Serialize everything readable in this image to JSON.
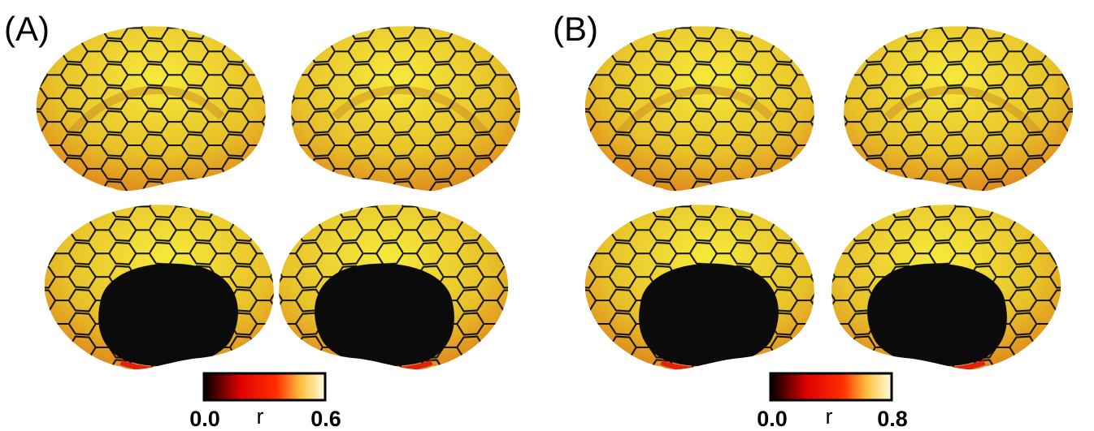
{
  "panels": [
    {
      "label": "(A)",
      "colorbar": {
        "min": "0.0",
        "label": "r",
        "max": "0.6"
      }
    },
    {
      "label": "(B)",
      "colorbar": {
        "min": "0.0",
        "label": "r",
        "max": "0.8"
      }
    }
  ]
}
